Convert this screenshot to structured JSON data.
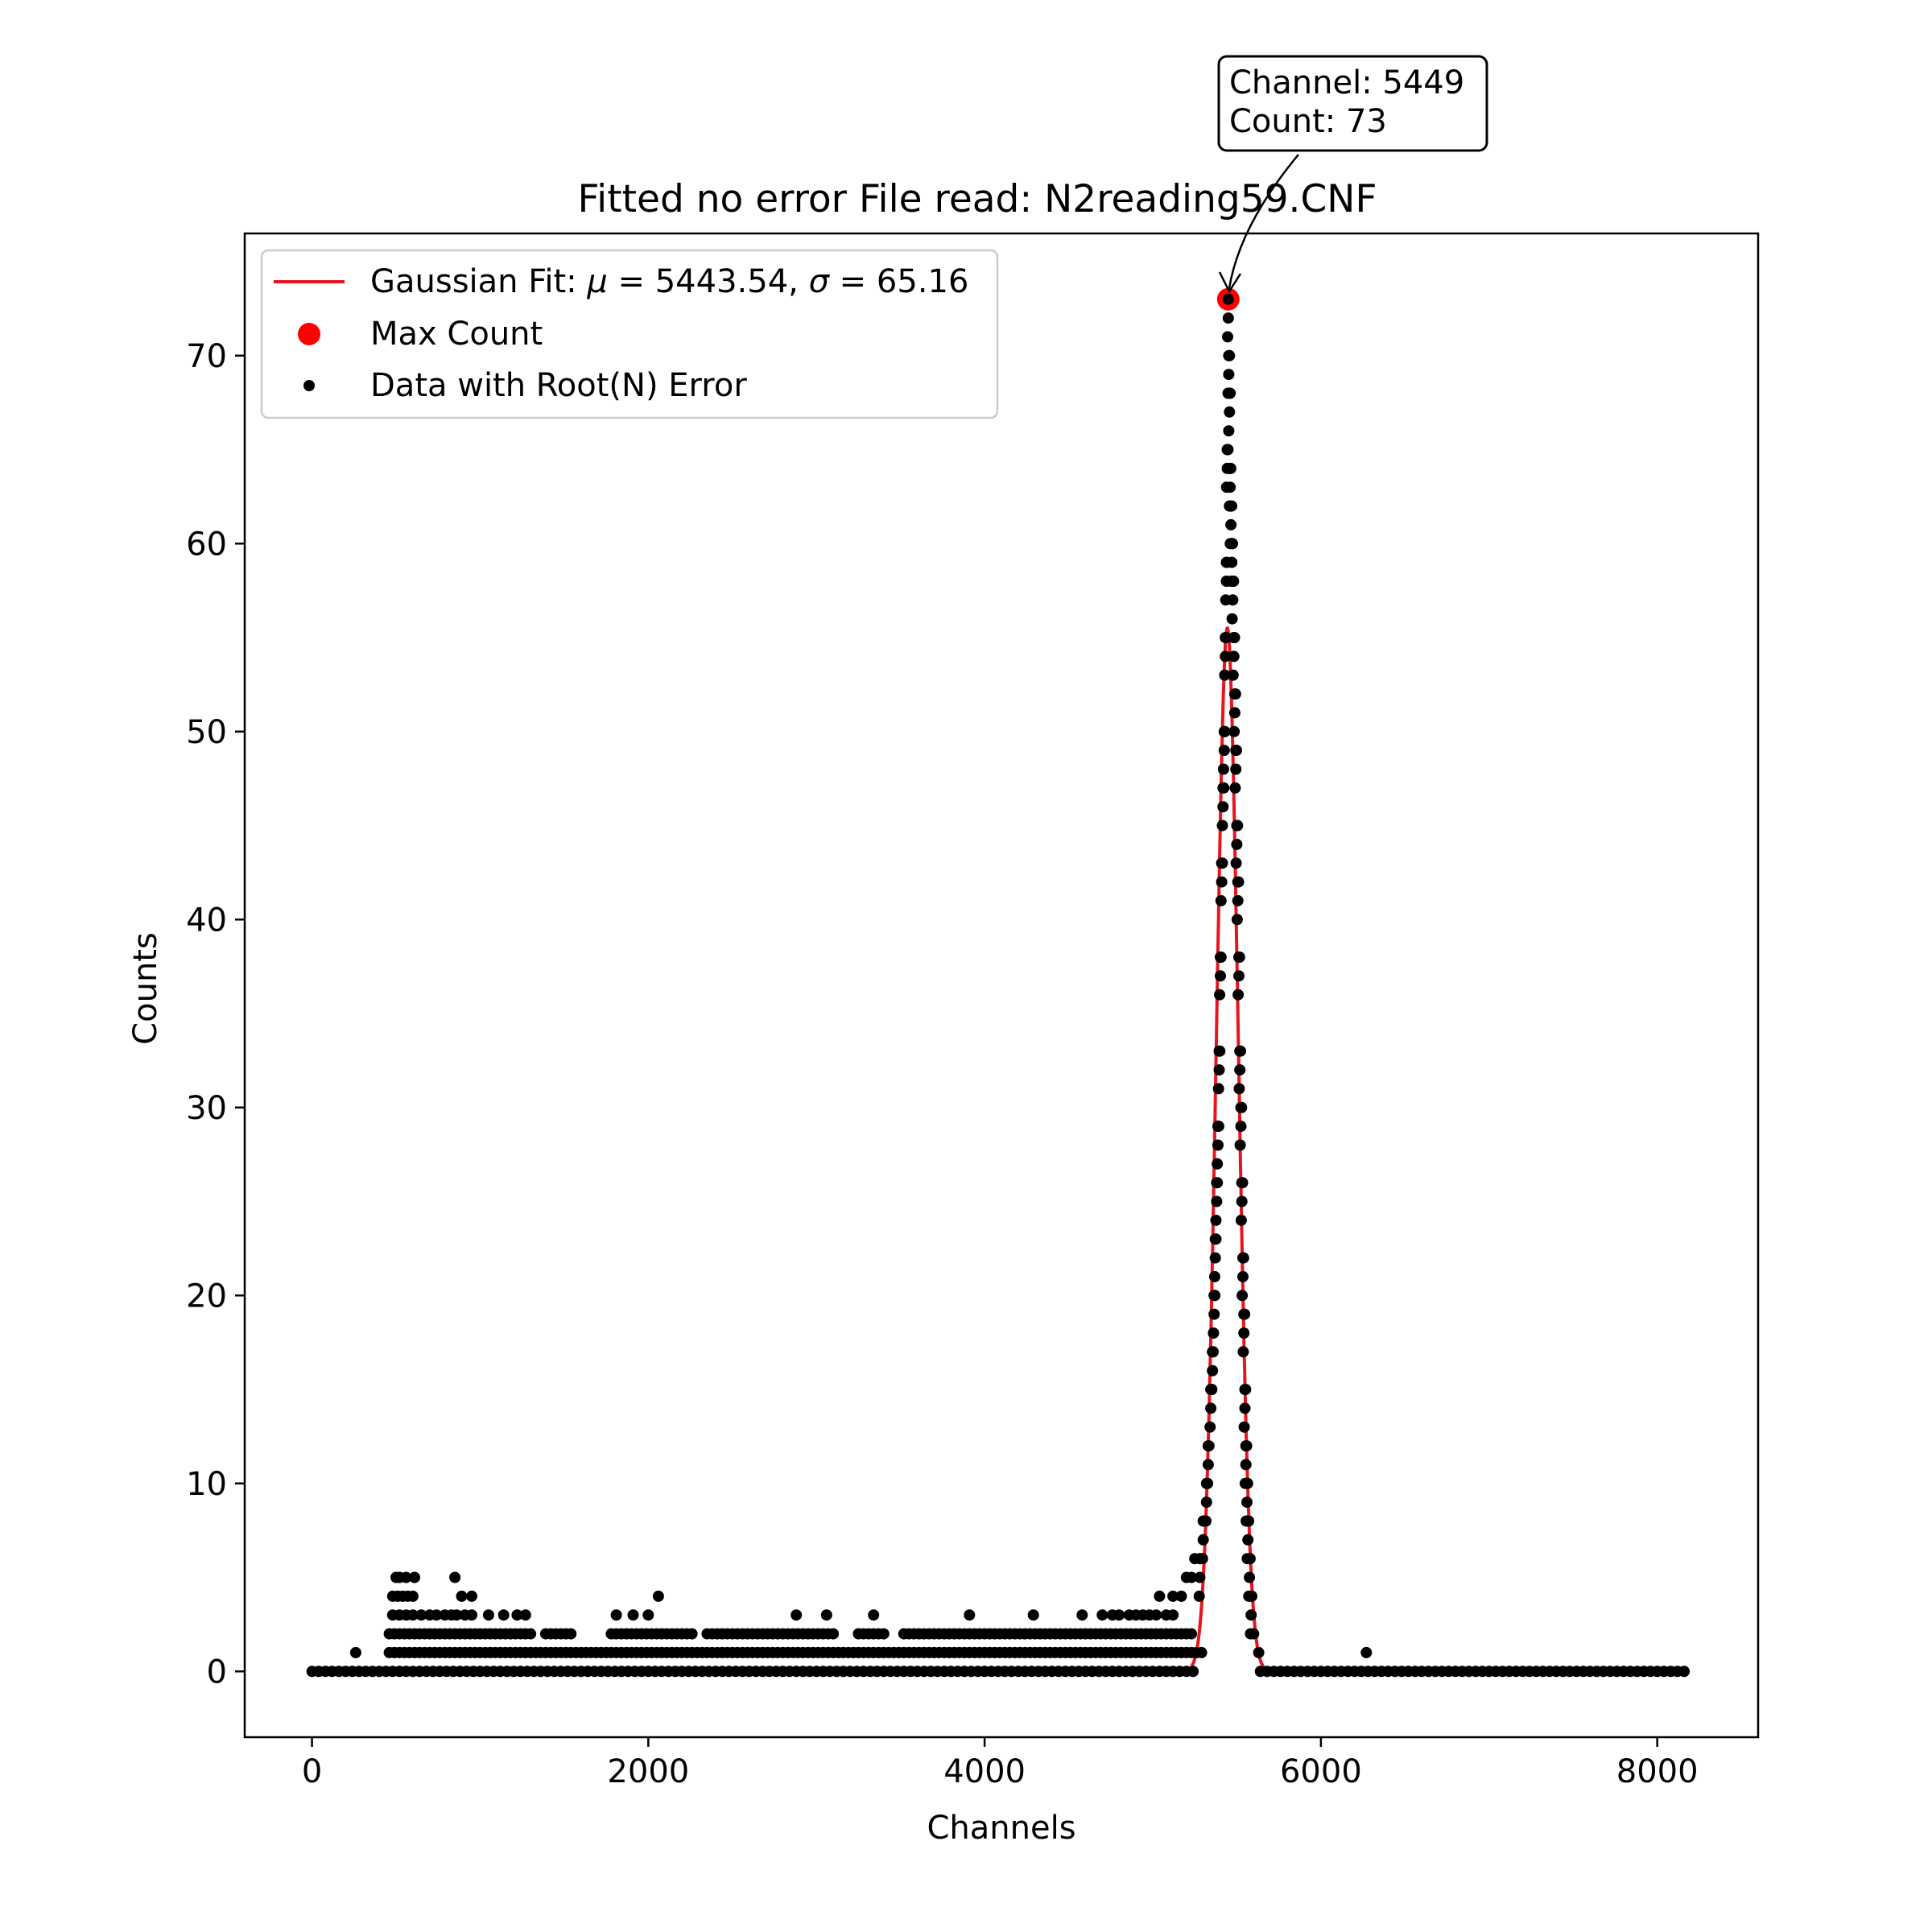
{
  "chart_data": {
    "type": "scatter",
    "title": "Fitted no error File read: N2reading59.CNF",
    "xlabel": "Channels",
    "ylabel": "Counts",
    "xlim": [
      -400,
      8600
    ],
    "ylim": [
      -3.5,
      76.5
    ],
    "xticks": [
      0,
      2000,
      4000,
      6000,
      8000
    ],
    "xtick_labels": [
      "0",
      "2000",
      "4000",
      "6000",
      "8000"
    ],
    "yticks": [
      0,
      10,
      20,
      30,
      40,
      50,
      60,
      70
    ],
    "ytick_labels": [
      "0",
      "10",
      "20",
      "30",
      "40",
      "50",
      "60",
      "70"
    ],
    "grid": false,
    "legend_position": "top-left",
    "colors": {
      "fit": "#e8141b",
      "max": "#ff0000",
      "data": "#000000"
    },
    "legend": {
      "fit_label_prefix": "Gaussian Fit: ",
      "fit_mu_symbol": "μ",
      "fit_eq": " = ",
      "fit_mu_value": "5443.54",
      "fit_sep": ", ",
      "fit_sigma_symbol": "σ",
      "fit_sigma_value": "65.16",
      "max_label": "Max Count",
      "data_label": "Data with Root(N) Error"
    },
    "fit": {
      "mu": 5443.54,
      "sigma": 65.16,
      "amplitude": 55.5
    },
    "max_point": {
      "channel": 5449,
      "count": 73
    },
    "annotation": {
      "line1": "Channel: 5449",
      "line2": "Count: 73"
    },
    "data": {
      "channel_range": [
        0,
        8191
      ],
      "baseline_count": 0,
      "low_count_region": [
        {
          "x": 260,
          "y": 1
        },
        {
          "x": 500,
          "y": 5
        },
        {
          "x": 520,
          "y": 5
        },
        {
          "x": 560,
          "y": 5
        },
        {
          "x": 610,
          "y": 5
        },
        {
          "x": 480,
          "y": 4
        },
        {
          "x": 510,
          "y": 4
        },
        {
          "x": 540,
          "y": 4
        },
        {
          "x": 570,
          "y": 4
        },
        {
          "x": 600,
          "y": 4
        },
        {
          "x": 480,
          "y": 3
        },
        {
          "x": 520,
          "y": 3
        },
        {
          "x": 560,
          "y": 3
        },
        {
          "x": 600,
          "y": 3
        },
        {
          "x": 650,
          "y": 3
        },
        {
          "x": 700,
          "y": 3
        },
        {
          "x": 740,
          "y": 3
        },
        {
          "x": 790,
          "y": 3
        },
        {
          "x": 830,
          "y": 3
        },
        {
          "x": 860,
          "y": 3
        },
        {
          "x": 850,
          "y": 5
        },
        {
          "x": 890,
          "y": 4
        },
        {
          "x": 950,
          "y": 4
        },
        {
          "x": 910,
          "y": 3
        },
        {
          "x": 950,
          "y": 3
        },
        {
          "x": 1050,
          "y": 3
        },
        {
          "x": 1140,
          "y": 3
        },
        {
          "x": 1220,
          "y": 3
        },
        {
          "x": 1270,
          "y": 3
        },
        {
          "x": 1810,
          "y": 3
        },
        {
          "x": 1910,
          "y": 3
        },
        {
          "x": 2000,
          "y": 3
        },
        {
          "x": 2060,
          "y": 4
        },
        {
          "x": 2880,
          "y": 3
        },
        {
          "x": 3060,
          "y": 3
        },
        {
          "x": 3340,
          "y": 3
        },
        {
          "x": 3910,
          "y": 3
        },
        {
          "x": 4290,
          "y": 3
        },
        {
          "x": 4580,
          "y": 3
        },
        {
          "x": 4700,
          "y": 3
        },
        {
          "x": 4760,
          "y": 3
        },
        {
          "x": 4800,
          "y": 3
        },
        {
          "x": 4860,
          "y": 3
        },
        {
          "x": 4900,
          "y": 3
        },
        {
          "x": 4940,
          "y": 3
        },
        {
          "x": 4980,
          "y": 3
        },
        {
          "x": 5020,
          "y": 3
        },
        {
          "x": 5080,
          "y": 3
        },
        {
          "x": 5120,
          "y": 3
        },
        {
          "x": 5040,
          "y": 4
        },
        {
          "x": 5120,
          "y": 4
        },
        {
          "x": 5170,
          "y": 4
        },
        {
          "x": 5200,
          "y": 5
        },
        {
          "x": 5230,
          "y": 5
        },
        {
          "x": 5250,
          "y": 6
        },
        {
          "x": 5280,
          "y": 6
        },
        {
          "x": 5300,
          "y": 8
        },
        {
          "x": 5320,
          "y": 10
        },
        {
          "x": 5330,
          "y": 12
        },
        {
          "x": 5345,
          "y": 15
        },
        {
          "x": 5355,
          "y": 17
        },
        {
          "x": 5365,
          "y": 20
        },
        {
          "x": 5372,
          "y": 23
        },
        {
          "x": 5380,
          "y": 26
        },
        {
          "x": 5388,
          "y": 29
        },
        {
          "x": 5395,
          "y": 33
        },
        {
          "x": 5402,
          "y": 38
        },
        {
          "x": 5410,
          "y": 43
        },
        {
          "x": 5418,
          "y": 47
        },
        {
          "x": 5425,
          "y": 50
        },
        {
          "x": 5432,
          "y": 55
        },
        {
          "x": 5438,
          "y": 59
        },
        {
          "x": 5443,
          "y": 65
        },
        {
          "x": 5449,
          "y": 73
        },
        {
          "x": 5452,
          "y": 70
        },
        {
          "x": 5456,
          "y": 68
        },
        {
          "x": 5460,
          "y": 64
        },
        {
          "x": 5465,
          "y": 62
        },
        {
          "x": 5470,
          "y": 60
        },
        {
          "x": 5476,
          "y": 58
        },
        {
          "x": 5482,
          "y": 55
        },
        {
          "x": 5488,
          "y": 52
        },
        {
          "x": 5494,
          "y": 49
        },
        {
          "x": 5500,
          "y": 45
        },
        {
          "x": 5506,
          "y": 42
        },
        {
          "x": 5512,
          "y": 38
        },
        {
          "x": 5518,
          "y": 33
        },
        {
          "x": 5524,
          "y": 30
        },
        {
          "x": 5530,
          "y": 26
        },
        {
          "x": 5536,
          "y": 22
        },
        {
          "x": 5542,
          "y": 19
        },
        {
          "x": 5548,
          "y": 15
        },
        {
          "x": 5554,
          "y": 12
        },
        {
          "x": 5560,
          "y": 10
        },
        {
          "x": 5566,
          "y": 8
        },
        {
          "x": 5575,
          "y": 6
        },
        {
          "x": 5585,
          "y": 4
        },
        {
          "x": 5600,
          "y": 2
        },
        {
          "x": 5630,
          "y": 1
        },
        {
          "x": 6270,
          "y": 1
        }
      ]
    }
  }
}
